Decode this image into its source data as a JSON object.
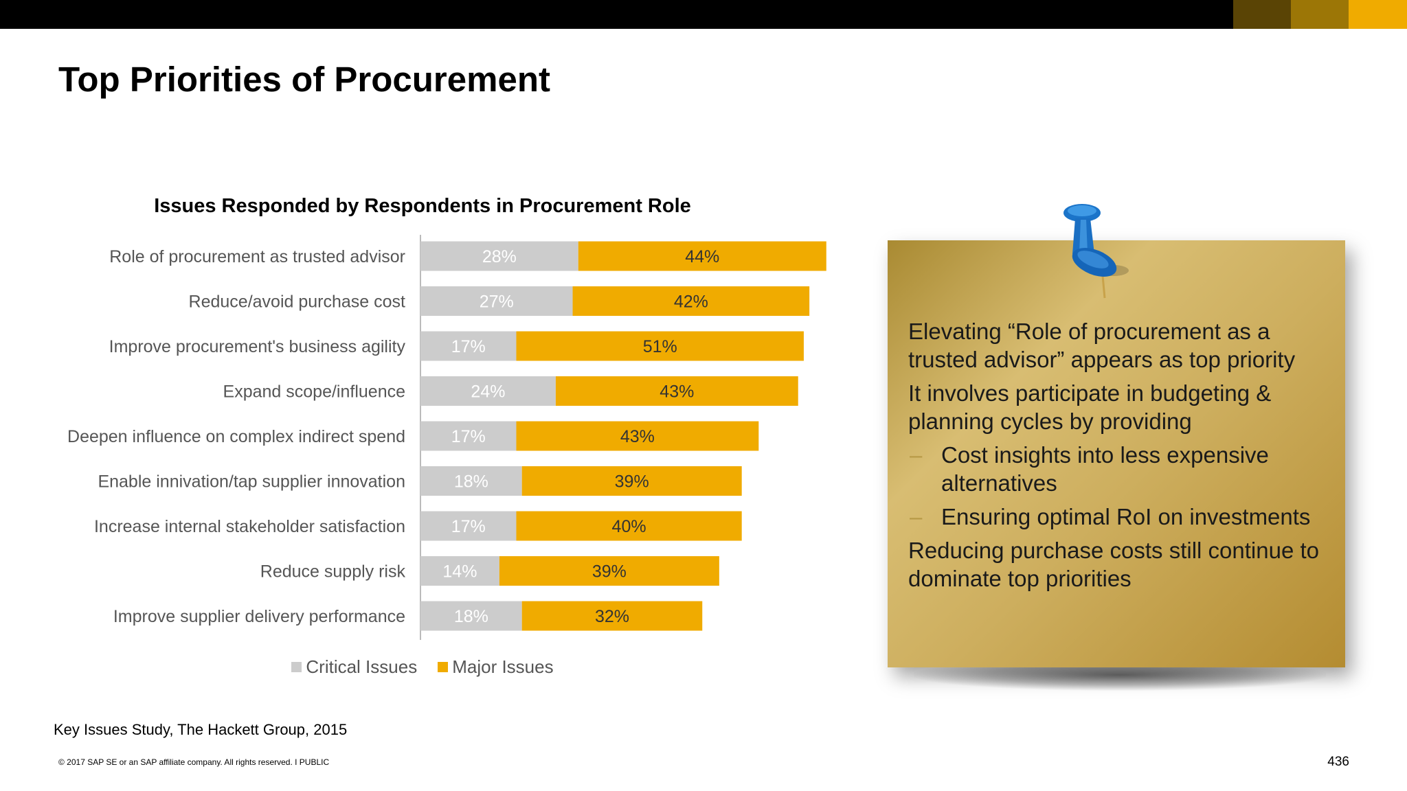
{
  "header": {
    "title": "Top Priorities of Procurement",
    "accent_colors": [
      "#5a4405",
      "#9c7606",
      "#f0ab00"
    ]
  },
  "chart_data": {
    "type": "bar",
    "orientation": "horizontal",
    "stacked": true,
    "title": "Issues Responded by Respondents  in Procurement Role",
    "categories": [
      "Role of procurement as trusted advisor",
      "Reduce/avoid purchase cost",
      "Improve procurement's business agility",
      "Expand scope/influence",
      "Deepen influence on complex indirect spend",
      "Enable innivation/tap supplier innovation",
      "Increase internal stakeholder satisfaction",
      "Reduce supply risk",
      "Improve supplier delivery performance"
    ],
    "series": [
      {
        "name": "Critical Issues",
        "color": "#cccccc",
        "values": [
          28,
          27,
          17,
          24,
          17,
          18,
          17,
          14,
          18
        ],
        "labels": [
          "28%",
          "27%",
          "17%",
          "24%",
          "17%",
          "18%",
          "17%",
          "14%",
          "18%"
        ]
      },
      {
        "name": "Major Issues",
        "color": "#f0ab00",
        "values": [
          44,
          42,
          51,
          43,
          43,
          39,
          40,
          39,
          32
        ],
        "labels": [
          "44%",
          "42%",
          "51%",
          "43%",
          "43%",
          "39%",
          "40%",
          "39%",
          "32%"
        ]
      }
    ],
    "legend_position": "bottom",
    "grid": false
  },
  "note": {
    "paragraph_1": "Elevating “Role of procurement as a trusted advisor” appears as top priority",
    "paragraph_2": "It involves participate in budgeting & planning cycles by providing",
    "sub_1_dash": "–",
    "sub_1": "Cost insights into less expensive alternatives",
    "sub_2_dash": "–",
    "sub_2": "Ensuring optimal RoI on investments",
    "paragraph_3": "Reducing purchase costs still continue to dominate top priorities",
    "pin_icon": "pushpin-icon"
  },
  "footer": {
    "source": "Key Issues Study, The Hackett Group, 2015",
    "copyright": "© 2017 SAP SE or an SAP affiliate company. All rights reserved.  I   PUBLIC",
    "page_number": "436"
  }
}
